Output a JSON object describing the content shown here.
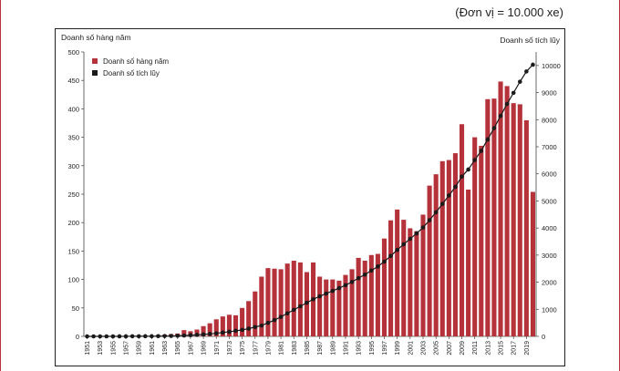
{
  "page": {
    "unit_note": "(Đơn vị = 10.000 xe)",
    "accent_color": "#b5323a"
  },
  "chart_data": {
    "type": "bar",
    "y_left_label": "Doanh số hàng năm",
    "y_right_label": "Doanh số tích lũy",
    "ylim_left": [
      0,
      500
    ],
    "ylim_right": [
      0,
      10500
    ],
    "y_left_ticks": [
      0,
      50,
      100,
      150,
      200,
      250,
      300,
      350,
      400,
      450,
      500
    ],
    "y_right_ticks": [
      0,
      1000,
      2000,
      3000,
      4000,
      5000,
      6000,
      7000,
      8000,
      9000,
      10000
    ],
    "x_tick_labels": [
      "1951",
      "1953",
      "1955",
      "1957",
      "1959",
      "1961",
      "1963",
      "1965",
      "1967",
      "1969",
      "1971",
      "1973",
      "1975",
      "1977",
      "1979",
      "1981",
      "1983",
      "1985",
      "1987",
      "1989",
      "1991",
      "1993",
      "1995",
      "1997",
      "1999",
      "2001",
      "2003",
      "2005",
      "2007",
      "2009",
      "2011",
      "2013",
      "2015",
      "2017",
      "2019"
    ],
    "grid": false,
    "legend_position": "top-left",
    "years": [
      1951,
      1952,
      1953,
      1954,
      1955,
      1956,
      1957,
      1958,
      1959,
      1960,
      1961,
      1962,
      1963,
      1964,
      1965,
      1966,
      1967,
      1968,
      1969,
      1970,
      1971,
      1972,
      1973,
      1974,
      1975,
      1976,
      1977,
      1978,
      1979,
      1980,
      1981,
      1982,
      1983,
      1984,
      1985,
      1986,
      1987,
      1988,
      1989,
      1990,
      1991,
      1992,
      1993,
      1994,
      1995,
      1996,
      1997,
      1998,
      1999,
      2000,
      2001,
      2002,
      2003,
      2004,
      2005,
      2006,
      2007,
      2008,
      2009,
      2010,
      2011,
      2012,
      2013,
      2014,
      2015,
      2016,
      2017,
      2018,
      2019,
      2020
    ],
    "series": [
      {
        "name": "Doanh số hàng năm",
        "kind": "bar",
        "axis": "left",
        "color": "#b5323a",
        "values": [
          0,
          0,
          0,
          0,
          0,
          0,
          0,
          0,
          1,
          1,
          1,
          2,
          3,
          4,
          5,
          11,
          9,
          12,
          18,
          23,
          30,
          35,
          38,
          37,
          50,
          62,
          79,
          105,
          120,
          119,
          118,
          128,
          133,
          130,
          113,
          130,
          105,
          100,
          100,
          98,
          108,
          118,
          138,
          133,
          143,
          145,
          172,
          204,
          223,
          205,
          190,
          185,
          214,
          265,
          285,
          308,
          310,
          322,
          373,
          258,
          350,
          335,
          417,
          418,
          448,
          440,
          410,
          408,
          380,
          254
        ]
      },
      {
        "name": "Doanh số tích lũy",
        "kind": "line",
        "axis": "right",
        "color": "#1a1a1a",
        "values": [
          0,
          0,
          0,
          0,
          0,
          1,
          2,
          3,
          4,
          5,
          6,
          8,
          11,
          15,
          21,
          31,
          43,
          56,
          72,
          90,
          112,
          140,
          170,
          205,
          240,
          285,
          345,
          400,
          500,
          600,
          720,
          850,
          980,
          1110,
          1240,
          1370,
          1480,
          1580,
          1680,
          1780,
          1890,
          2010,
          2150,
          2280,
          2430,
          2580,
          2760,
          2970,
          3190,
          3400,
          3600,
          3800,
          4020,
          4290,
          4580,
          4890,
          5200,
          5520,
          5900,
          6160,
          6510,
          6850,
          7270,
          7690,
          8140,
          8580,
          8990,
          9400,
          9780,
          10030
        ]
      }
    ]
  }
}
